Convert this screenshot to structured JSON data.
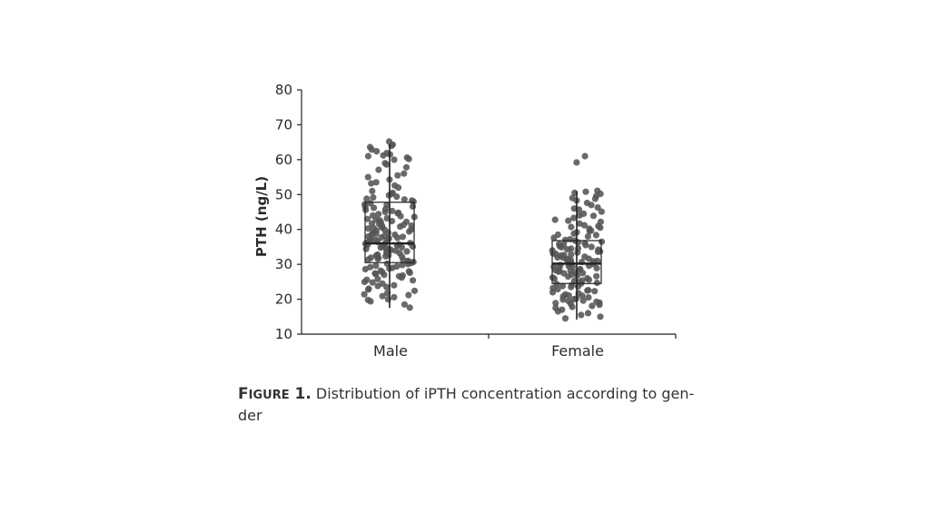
{
  "colors": {
    "points": "#555555",
    "axis": "#222222",
    "box": "#222222"
  },
  "caption": {
    "label_first": "F",
    "label_rest": "IGURE",
    "label_num": "1.",
    "text": "Distribution of iPTH concentration according to gen-",
    "text_line2": "der"
  },
  "chart_data": {
    "type": "box",
    "ylabel": "PTH (ng/L)",
    "xlabel": "",
    "ylim": [
      10,
      80
    ],
    "yticks": [
      10,
      20,
      30,
      40,
      50,
      60,
      70,
      80
    ],
    "categories": [
      "Male",
      "Female"
    ],
    "boxes": [
      {
        "name": "Male",
        "q1": 30.5,
        "median": 36,
        "q3": 47.8,
        "whisker_low": 17.5,
        "whisker_high": 64.5
      },
      {
        "name": "Female",
        "q1": 24.5,
        "median": 30.2,
        "q3": 36.8,
        "whisker_low": 14.2,
        "whisker_high": 51
      }
    ],
    "jitter_points": [
      {
        "category": "Male",
        "values": [
          65.2,
          64.3,
          63.6,
          62.4,
          61.9,
          61.5,
          61.0,
          60.2,
          60.0,
          59.0,
          57.1,
          56.0,
          55.5,
          55.0,
          54.3,
          53.5,
          52.0,
          51.0,
          50.5,
          49.8,
          49.2,
          48.8,
          48.3,
          48.0,
          47.5,
          47.0,
          46.6,
          46.2,
          45.8,
          45.3,
          44.8,
          44.4,
          44.0,
          43.6,
          43.2,
          42.8,
          42.4,
          42.0,
          41.7,
          41.3,
          41.0,
          40.6,
          40.3,
          40.0,
          39.7,
          39.4,
          39.1,
          38.8,
          38.5,
          38.2,
          37.9,
          37.6,
          37.3,
          37.0,
          36.8,
          36.5,
          36.2,
          36.0,
          35.7,
          35.4,
          35.1,
          34.8,
          34.6,
          34.3,
          34.0,
          33.7,
          33.4,
          33.1,
          32.8,
          32.5,
          32.2,
          31.9,
          31.6,
          31.3,
          31.0,
          30.7,
          30.4,
          30.1,
          29.8,
          29.4,
          29.0,
          28.6,
          28.2,
          27.8,
          27.4,
          27.0,
          26.6,
          26.2,
          25.8,
          25.4,
          25.0,
          24.5,
          24.0,
          23.5,
          23.0,
          22.4,
          21.8,
          21.2,
          20.6,
          20.0,
          19.4,
          18.5,
          17.6,
          36.4,
          35.9,
          38.6,
          40.8,
          33.2,
          44.6,
          30.9,
          27.2,
          42.2,
          39.0,
          34.4,
          22.8,
          46.4,
          50.2,
          57.8,
          60.6,
          62.9,
          28.8,
          25.6,
          31.8,
          37.4,
          43.0,
          35.3,
          29.6,
          41.5,
          48.6,
          53.2,
          24.8,
          21.4,
          33.9,
          38.0,
          39.9,
          36.7,
          32.6,
          45.0,
          47.2,
          26.8,
          30.2,
          34.9,
          37.7,
          41.1,
          43.8,
          49.4,
          23.8,
          20.9,
          19.8,
          28.0,
          31.4,
          35.6,
          40.4,
          42.6,
          45.6,
          52.6,
          58.6,
          61.2,
          64.0,
          36.1,
          34.1,
          32.3,
          29.2,
          27.6
        ]
      },
      {
        "category": "Female",
        "values": [
          61.0,
          59.2,
          51.1,
          50.8,
          50.5,
          50.2,
          49.6,
          49.0,
          48.3,
          47.6,
          47.0,
          46.3,
          45.7,
          45.1,
          44.5,
          43.9,
          43.3,
          42.8,
          42.2,
          41.7,
          41.2,
          40.7,
          40.2,
          39.7,
          39.2,
          38.8,
          38.4,
          38.0,
          37.6,
          37.2,
          36.8,
          36.5,
          36.1,
          35.8,
          35.5,
          35.2,
          34.9,
          34.6,
          34.3,
          34.0,
          33.7,
          33.4,
          33.1,
          32.8,
          32.5,
          32.2,
          31.9,
          31.6,
          31.3,
          31.0,
          30.7,
          30.4,
          30.1,
          29.8,
          29.5,
          29.2,
          28.9,
          28.6,
          28.3,
          28.0,
          27.7,
          27.4,
          27.1,
          26.8,
          26.5,
          26.2,
          25.9,
          25.6,
          25.3,
          25.0,
          24.7,
          24.4,
          24.1,
          23.8,
          23.5,
          23.2,
          22.9,
          22.6,
          22.3,
          22.0,
          21.7,
          21.4,
          21.1,
          20.8,
          20.5,
          20.2,
          19.9,
          19.6,
          19.3,
          19.0,
          18.7,
          18.4,
          18.1,
          17.8,
          17.5,
          17.0,
          16.5,
          16.0,
          15.5,
          15.0,
          14.5,
          30.2,
          31.5,
          29.0,
          33.6,
          27.5,
          35.0,
          26.0,
          37.0,
          24.5,
          38.5,
          22.5,
          40.5,
          21.0,
          42.5,
          19.5,
          44.0,
          28.5,
          32.0,
          34.5,
          30.9,
          29.6,
          36.3,
          23.7,
          25.4,
          31.2,
          33.0,
          27.9,
          28.2,
          34.2,
          39.5,
          41.0,
          46.0,
          48.8,
          20.0,
          18.9,
          26.6,
          30.5,
          32.7,
          35.7,
          29.3
        ]
      }
    ]
  }
}
